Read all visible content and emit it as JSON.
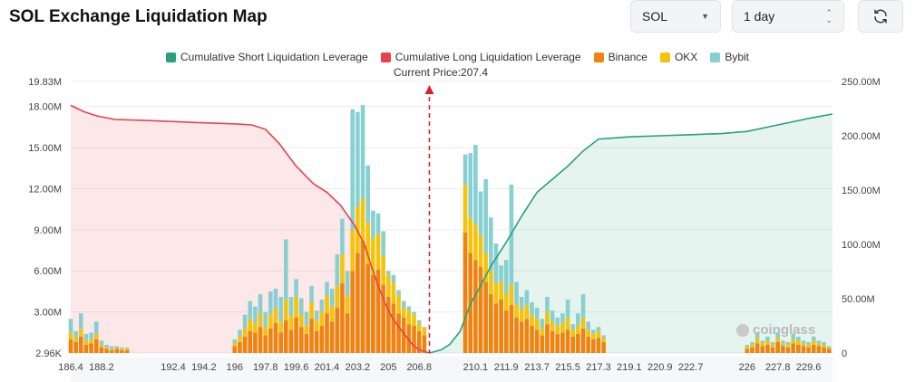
{
  "page": {
    "title": "SOL Exchange Liquidation Map"
  },
  "controls": {
    "symbol": "SOL",
    "range": "1 day"
  },
  "icons": {
    "symbol_caret": "caret-down-icon",
    "range_updown": "updown-icon",
    "refresh": "refresh-icon"
  },
  "legend": [
    {
      "label": "Cumulative Short Liquidation Leverage",
      "color": "#26a17b"
    },
    {
      "label": "Cumulative Long Liquidation Leverage",
      "color": "#e8414b"
    },
    {
      "label": "Binance",
      "color": "#f0820f"
    },
    {
      "label": "OKX",
      "color": "#f5c30b"
    },
    {
      "label": "Bybit",
      "color": "#88cfd2"
    }
  ],
  "watermark": "coinglass",
  "chart_data": {
    "type": "bar",
    "title": "SOL Exchange Liquidation Map",
    "current_price": 207.4,
    "current_price_label": "Current Price:207.4",
    "x_range": [
      186.4,
      231.0
    ],
    "x_ticks": [
      "186.4",
      "188.2",
      "192.4",
      "194.2",
      "196",
      "197.8",
      "199.6",
      "201.4",
      "203.2",
      "205",
      "206.8",
      "210.1",
      "211.9",
      "213.7",
      "215.5",
      "217.3",
      "219.1",
      "220.9",
      "222.7",
      "226",
      "227.8",
      "229.6"
    ],
    "left_axis": {
      "ticks": [
        "19.83M",
        "18.00M",
        "15.00M",
        "12.00M",
        "9.00M",
        "6.00M",
        "3.00M",
        "2.96K"
      ],
      "tick_values": [
        19.83,
        18,
        15,
        12,
        9,
        6,
        3,
        0
      ],
      "ylim": [
        0,
        19.83
      ],
      "unit": "M"
    },
    "right_axis": {
      "ticks": [
        "250.00M",
        "200.00M",
        "150.00M",
        "100.00M",
        "50.00M",
        "0"
      ],
      "tick_values": [
        250,
        200,
        150,
        100,
        50,
        0
      ],
      "ylim": [
        0,
        250
      ],
      "unit": "M"
    },
    "bar_prices": [
      186.4,
      186.7,
      187.0,
      187.3,
      187.6,
      187.9,
      188.2,
      188.5,
      188.8,
      189.1,
      189.4,
      189.7,
      196.0,
      196.3,
      196.6,
      196.9,
      197.2,
      197.5,
      197.8,
      198.1,
      198.4,
      198.7,
      199.0,
      199.3,
      199.6,
      199.9,
      200.2,
      200.5,
      200.8,
      201.1,
      201.4,
      201.7,
      202.0,
      202.3,
      202.6,
      202.9,
      203.2,
      203.5,
      203.8,
      204.1,
      204.4,
      204.7,
      205.0,
      205.3,
      205.6,
      205.9,
      206.2,
      206.5,
      206.8,
      207.1,
      209.5,
      209.8,
      210.1,
      210.4,
      210.7,
      211.0,
      211.3,
      211.6,
      211.9,
      212.2,
      212.5,
      212.8,
      213.1,
      213.4,
      213.7,
      214.0,
      214.3,
      214.6,
      214.9,
      215.2,
      215.5,
      215.8,
      216.1,
      216.4,
      216.7,
      217.0,
      217.3,
      217.6,
      226.0,
      226.3,
      226.6,
      226.9,
      227.2,
      227.5,
      227.8,
      228.1,
      228.4,
      228.7,
      229.0,
      229.3,
      229.6,
      229.9,
      230.2,
      230.5,
      230.8
    ],
    "series": [
      {
        "name": "Binance",
        "values": [
          1.0,
          0.8,
          1.2,
          0.6,
          0.7,
          1.0,
          0.4,
          0.3,
          0.2,
          0.3,
          0.2,
          0.2,
          0.5,
          0.8,
          1.2,
          1.6,
          1.5,
          1.9,
          1.3,
          1.8,
          2.2,
          1.5,
          2.4,
          1.7,
          2.6,
          1.9,
          1.4,
          2.5,
          1.6,
          2.0,
          2.9,
          2.3,
          3.3,
          5.1,
          2.9,
          6.0,
          7.3,
          8.2,
          6.5,
          5.7,
          6.1,
          5.0,
          4.1,
          3.6,
          2.9,
          2.6,
          2.1,
          2.0,
          1.6,
          1.3,
          8.8,
          7.3,
          6.8,
          6.3,
          5.2,
          4.3,
          3.6,
          3.9,
          3.1,
          3.5,
          2.6,
          2.3,
          2.5,
          2.0,
          1.7,
          1.3,
          2.1,
          1.6,
          1.4,
          1.5,
          1.7,
          1.2,
          1.4,
          1.8,
          1.2,
          1.0,
          1.1,
          0.8,
          0.3,
          0.4,
          0.7,
          0.5,
          0.6,
          0.4,
          0.8,
          0.5,
          0.4,
          0.7,
          0.6,
          0.5,
          0.4,
          0.6,
          0.5,
          0.4,
          0.3
        ]
      },
      {
        "name": "OKX",
        "values": [
          0.5,
          0.3,
          0.6,
          0.3,
          0.3,
          0.4,
          0.2,
          0.1,
          0.1,
          0.1,
          0.1,
          0.1,
          0.2,
          0.4,
          0.6,
          0.9,
          0.7,
          1.0,
          0.6,
          1.0,
          1.1,
          0.8,
          1.5,
          1.0,
          1.5,
          0.9,
          0.6,
          1.2,
          0.8,
          1.0,
          1.3,
          1.1,
          1.6,
          2.1,
          1.3,
          3.0,
          3.4,
          3.1,
          3.0,
          2.7,
          2.6,
          2.1,
          1.6,
          1.5,
          1.3,
          0.7,
          1.0,
          0.8,
          0.6,
          0.5,
          3.5,
          2.6,
          2.6,
          2.3,
          2.1,
          1.7,
          1.5,
          1.3,
          1.2,
          1.5,
          1.0,
          0.9,
          1.0,
          0.8,
          0.8,
          0.5,
          0.9,
          0.7,
          0.6,
          0.7,
          0.9,
          0.5,
          0.6,
          0.8,
          0.5,
          0.4,
          0.5,
          0.3,
          0.2,
          0.2,
          0.4,
          0.2,
          0.3,
          0.2,
          0.3,
          0.2,
          0.2,
          0.3,
          0.3,
          0.2,
          0.2,
          0.3,
          0.2,
          0.2,
          0.1
        ]
      },
      {
        "name": "Bybit",
        "values": [
          1.0,
          0.5,
          1.1,
          0.5,
          0.5,
          0.9,
          0.3,
          0.2,
          0.2,
          0.1,
          0.1,
          0.1,
          0.3,
          0.5,
          1.0,
          1.3,
          1.2,
          1.4,
          1.1,
          1.7,
          1.4,
          1.8,
          4.4,
          1.4,
          1.3,
          1.2,
          1.0,
          1.2,
          0.7,
          0.9,
          1.0,
          1.3,
          2.3,
          2.6,
          1.8,
          8.8,
          6.9,
          6.8,
          4.2,
          2.0,
          1.5,
          1.8,
          0.3,
          0.6,
          0.4,
          0.5,
          0.3,
          0.2,
          0.2,
          0.1,
          2.2,
          4.7,
          5.8,
          3.2,
          5.4,
          3.9,
          2.9,
          1.2,
          2.5,
          7.3,
          1.6,
          0.9,
          1.1,
          0.9,
          0.8,
          0.7,
          1.1,
          0.8,
          0.6,
          0.7,
          1.3,
          0.4,
          0.9,
          1.7,
          0.6,
          0.3,
          0.3,
          0.2,
          0.1,
          0.2,
          0.4,
          0.2,
          0.3,
          0.2,
          0.4,
          0.2,
          0.2,
          0.4,
          0.3,
          0.2,
          0.2,
          0.3,
          0.2,
          0.2,
          0.1
        ]
      }
    ],
    "long_curve": {
      "name": "Cumulative Long Liquidation Leverage",
      "x": [
        186.4,
        187.2,
        188.0,
        189.0,
        191.0,
        194.0,
        196.0,
        197.0,
        197.8,
        198.6,
        199.6,
        200.6,
        201.4,
        202.2,
        203.0,
        203.6,
        204.0,
        204.4,
        204.8,
        205.2,
        205.8,
        206.4,
        206.8,
        207.4
      ],
      "y": [
        228,
        222,
        218,
        215,
        214,
        212,
        211,
        210,
        206,
        193,
        172,
        156,
        148,
        136,
        118,
        100,
        80,
        62,
        46,
        33,
        20,
        8,
        3,
        0
      ]
    },
    "short_curve": {
      "name": "Cumulative Short Liquidation Leverage",
      "x": [
        207.4,
        208.1,
        208.6,
        209.2,
        209.8,
        210.4,
        211.0,
        211.9,
        212.8,
        213.7,
        214.6,
        215.5,
        216.4,
        217.3,
        218.2,
        219.1,
        220.9,
        222.7,
        224.5,
        226.0,
        227.8,
        229.6,
        231.0
      ],
      "y": [
        0,
        3,
        8,
        20,
        45,
        62,
        80,
        102,
        126,
        148,
        160,
        172,
        186,
        197,
        198,
        199,
        200,
        201,
        202,
        204,
        210,
        216,
        220
      ]
    }
  }
}
